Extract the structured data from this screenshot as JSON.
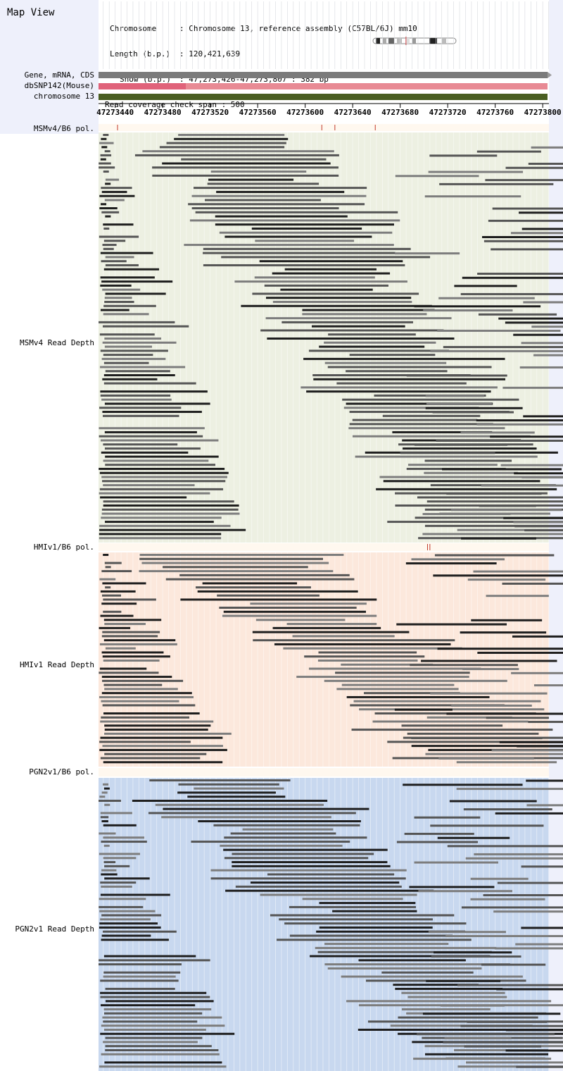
{
  "app": {
    "title": "Map View"
  },
  "info": {
    "rows": [
      {
        "key": "Chromosome",
        "sep": ":",
        "value": "Chromosome 13, reference assembly (C57BL/6J) mm10"
      },
      {
        "key": "Length (b.p.)",
        "sep": ":",
        "value": "120,421,639"
      },
      {
        "key": "Show (b.p.)",
        "sep": ":",
        "value": "47,273,426-47,273,807 : 382 bp"
      }
    ],
    "coverage_line": "Read coverage check span : 500"
  },
  "tracks": {
    "gene_label": "Gene, mRNA, CDS",
    "snp_label": "dbSNP142(Mouse)",
    "chrom_label": "chromosome 13"
  },
  "axis": {
    "ticks": [
      "47273440",
      "47273480",
      "47273520",
      "47273560",
      "47273600",
      "47273640",
      "47273680",
      "47273720",
      "47273760",
      "47273800"
    ],
    "range_bp": [
      47273426,
      47273807
    ]
  },
  "panels": [
    {
      "id": "msm",
      "pol_label": "MSMv4/B6 pol.",
      "depth_label": "MSMv4 Read Depth",
      "background": "#edf0e2",
      "pol_marks_bp": [
        47273442,
        47273614,
        47273625,
        47273659
      ]
    },
    {
      "id": "hmi",
      "pol_label": "HMIv1/B6 pol.",
      "depth_label": "HMIv1 Read Depth",
      "background": "#fce8dc",
      "pol_marks_bp": [
        47273703,
        47273705
      ]
    },
    {
      "id": "pgn",
      "pol_label": "PGN2v1/B6 pol.",
      "depth_label": "PGN2v1 Read Depth",
      "background": "#c8d8ef",
      "pol_marks_bp": []
    }
  ],
  "colors": {
    "sidebar": "#eef0fb",
    "gene": "#7b7b7b",
    "snp": "#e88a94",
    "snp_dark": "#e0627a",
    "chrom": "#4a5e22",
    "read_dark": "#1e1e1e",
    "read_mid": "#555555",
    "read_light": "#7d7d7d"
  }
}
